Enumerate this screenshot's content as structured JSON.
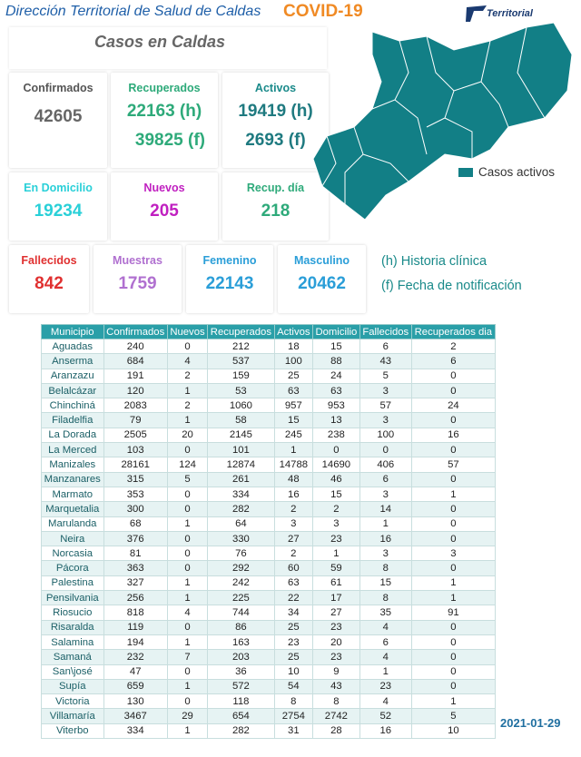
{
  "header": {
    "title": "Dirección Territorial de Salud de Caldas",
    "subtitle": "COVID-19",
    "logo": "Territorial"
  },
  "section_title": "Casos en Caldas",
  "cards": [
    {
      "label": "Confirmados",
      "values": [
        "42605"
      ]
    },
    {
      "label": "Recuperados",
      "values": [
        "22163 (h)",
        "39825 (f)"
      ]
    },
    {
      "label": "Activos",
      "values": [
        "19419 (h)",
        "2693 (f)"
      ]
    },
    {
      "label": "En Domicilio",
      "values": [
        "19234"
      ]
    },
    {
      "label": "Nuevos",
      "values": [
        "205"
      ]
    },
    {
      "label": "Recup. día",
      "values": [
        "218"
      ]
    },
    {
      "label": "Fallecidos",
      "values": [
        "842"
      ]
    },
    {
      "label": "Muestras",
      "values": [
        "1759"
      ]
    },
    {
      "label": "Femenino",
      "values": [
        "22143"
      ]
    },
    {
      "label": "Masculino",
      "values": [
        "20462"
      ]
    }
  ],
  "legend": "Casos activos",
  "notes": [
    "(h) Historia clínica",
    "(f) Fecha de notificación"
  ],
  "table": {
    "columns": [
      "Municipio",
      "Confirmados",
      "Nuevos",
      "Recuperados",
      "Activos",
      "Domicilio",
      "Fallecidos",
      "Recuperados dia"
    ],
    "rows": [
      [
        "Aguadas",
        "240",
        "0",
        "212",
        "18",
        "15",
        "6",
        "2"
      ],
      [
        "Anserma",
        "684",
        "4",
        "537",
        "100",
        "88",
        "43",
        "6"
      ],
      [
        "Aranzazu",
        "191",
        "2",
        "159",
        "25",
        "24",
        "5",
        "0"
      ],
      [
        "Belalcázar",
        "120",
        "1",
        "53",
        "63",
        "63",
        "3",
        "0"
      ],
      [
        "Chinchiná",
        "2083",
        "2",
        "1060",
        "957",
        "953",
        "57",
        "24"
      ],
      [
        "Filadelfia",
        "79",
        "1",
        "58",
        "15",
        "13",
        "3",
        "0"
      ],
      [
        "La Dorada",
        "2505",
        "20",
        "2145",
        "245",
        "238",
        "100",
        "16"
      ],
      [
        "La Merced",
        "103",
        "0",
        "101",
        "1",
        "0",
        "0",
        "0"
      ],
      [
        "Manizales",
        "28161",
        "124",
        "12874",
        "14788",
        "14690",
        "406",
        "57"
      ],
      [
        "Manzanares",
        "315",
        "5",
        "261",
        "48",
        "46",
        "6",
        "0"
      ],
      [
        "Marmato",
        "353",
        "0",
        "334",
        "16",
        "15",
        "3",
        "1"
      ],
      [
        "Marquetalia",
        "300",
        "0",
        "282",
        "2",
        "2",
        "14",
        "0"
      ],
      [
        "Marulanda",
        "68",
        "1",
        "64",
        "3",
        "3",
        "1",
        "0"
      ],
      [
        "Neira",
        "376",
        "0",
        "330",
        "27",
        "23",
        "16",
        "0"
      ],
      [
        "Norcasia",
        "81",
        "0",
        "76",
        "2",
        "1",
        "3",
        "3"
      ],
      [
        "Pácora",
        "363",
        "0",
        "292",
        "60",
        "59",
        "8",
        "0"
      ],
      [
        "Palestina",
        "327",
        "1",
        "242",
        "63",
        "61",
        "15",
        "1"
      ],
      [
        "Pensilvania",
        "256",
        "1",
        "225",
        "22",
        "17",
        "8",
        "1"
      ],
      [
        "Riosucio",
        "818",
        "4",
        "744",
        "34",
        "27",
        "35",
        "91"
      ],
      [
        "Risaralda",
        "119",
        "0",
        "86",
        "25",
        "23",
        "4",
        "0"
      ],
      [
        "Salamina",
        "194",
        "1",
        "163",
        "23",
        "20",
        "6",
        "0"
      ],
      [
        "Samaná",
        "232",
        "7",
        "203",
        "25",
        "23",
        "4",
        "0"
      ],
      [
        "San\\josé",
        "47",
        "0",
        "36",
        "10",
        "9",
        "1",
        "0"
      ],
      [
        "Supía",
        "659",
        "1",
        "572",
        "54",
        "43",
        "23",
        "0"
      ],
      [
        "Victoria",
        "130",
        "0",
        "118",
        "8",
        "8",
        "4",
        "1"
      ],
      [
        "Villamaría",
        "3467",
        "29",
        "654",
        "2754",
        "2742",
        "52",
        "5"
      ],
      [
        "Viterbo",
        "334",
        "1",
        "282",
        "31",
        "28",
        "16",
        "10"
      ]
    ]
  },
  "date": "2021-01-29"
}
